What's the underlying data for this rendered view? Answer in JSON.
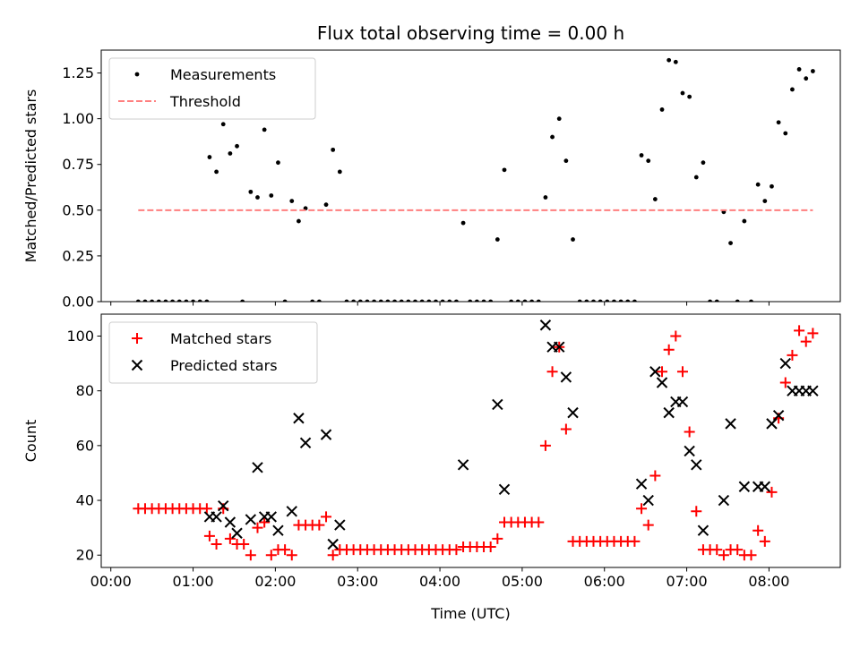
{
  "chart_data": [
    {
      "type": "scatter",
      "title": "Flux total observing time = 0.00 h",
      "xlabel": "",
      "ylabel": "Matched/Predicted stars",
      "xlim": [
        "23:53",
        "08:52"
      ],
      "ylim": [
        0,
        1.375
      ],
      "x_tick_labels_hidden": true,
      "y_ticks": [
        "0.00",
        "0.25",
        "0.50",
        "0.75",
        "1.00",
        "1.25"
      ],
      "legend_position": "upper left",
      "grid": false,
      "series": [
        {
          "name": "Measurements",
          "marker": "dot",
          "color": "#000000",
          "points": [
            [
              "00:20",
              0
            ],
            [
              "00:25",
              0
            ],
            [
              "00:30",
              0
            ],
            [
              "00:35",
              0
            ],
            [
              "00:40",
              0
            ],
            [
              "00:45",
              0
            ],
            [
              "00:50",
              0
            ],
            [
              "00:55",
              0
            ],
            [
              "01:00",
              0
            ],
            [
              "01:05",
              0
            ],
            [
              "01:10",
              0
            ],
            [
              "01:12",
              0.79
            ],
            [
              "01:17",
              0.71
            ],
            [
              "01:22",
              0.97
            ],
            [
              "01:27",
              0.81
            ],
            [
              "01:32",
              0.85
            ],
            [
              "01:36",
              0
            ],
            [
              "01:42",
              0.6
            ],
            [
              "01:47",
              0.57
            ],
            [
              "01:52",
              0.94
            ],
            [
              "01:57",
              0.58
            ],
            [
              "02:02",
              0.76
            ],
            [
              "02:07",
              0
            ],
            [
              "02:12",
              0.55
            ],
            [
              "02:17",
              0.44
            ],
            [
              "02:22",
              0.51
            ],
            [
              "02:27",
              0
            ],
            [
              "02:32",
              0
            ],
            [
              "02:37",
              0.53
            ],
            [
              "02:42",
              0.83
            ],
            [
              "02:47",
              0.71
            ],
            [
              "02:52",
              0
            ],
            [
              "02:57",
              0
            ],
            [
              "03:02",
              0
            ],
            [
              "03:07",
              0
            ],
            [
              "03:12",
              0
            ],
            [
              "03:17",
              0
            ],
            [
              "03:22",
              0
            ],
            [
              "03:27",
              0
            ],
            [
              "03:32",
              0
            ],
            [
              "03:37",
              0
            ],
            [
              "03:42",
              0
            ],
            [
              "03:47",
              0
            ],
            [
              "03:52",
              0
            ],
            [
              "03:57",
              0
            ],
            [
              "04:02",
              0
            ],
            [
              "04:07",
              0
            ],
            [
              "04:12",
              0
            ],
            [
              "04:17",
              0.43
            ],
            [
              "04:22",
              0
            ],
            [
              "04:27",
              0
            ],
            [
              "04:32",
              0
            ],
            [
              "04:37",
              0
            ],
            [
              "04:42",
              0.34
            ],
            [
              "04:47",
              0.72
            ],
            [
              "04:52",
              0
            ],
            [
              "04:57",
              0
            ],
            [
              "05:02",
              0
            ],
            [
              "05:07",
              0
            ],
            [
              "05:12",
              0
            ],
            [
              "05:17",
              0.57
            ],
            [
              "05:22",
              0.9
            ],
            [
              "05:27",
              1.0
            ],
            [
              "05:32",
              0.77
            ],
            [
              "05:37",
              0.34
            ],
            [
              "05:42",
              0
            ],
            [
              "05:47",
              0
            ],
            [
              "05:52",
              0
            ],
            [
              "05:57",
              0
            ],
            [
              "06:02",
              0
            ],
            [
              "06:07",
              0
            ],
            [
              "06:12",
              0
            ],
            [
              "06:17",
              0
            ],
            [
              "06:22",
              0
            ],
            [
              "06:27",
              0.8
            ],
            [
              "06:32",
              0.77
            ],
            [
              "06:37",
              0.56
            ],
            [
              "06:42",
              1.05
            ],
            [
              "06:47",
              1.32
            ],
            [
              "06:52",
              1.31
            ],
            [
              "06:57",
              1.14
            ],
            [
              "07:02",
              1.12
            ],
            [
              "07:07",
              0.68
            ],
            [
              "07:12",
              0.76
            ],
            [
              "07:17",
              0
            ],
            [
              "07:22",
              0
            ],
            [
              "07:27",
              0.49
            ],
            [
              "07:32",
              0.32
            ],
            [
              "07:37",
              0
            ],
            [
              "07:42",
              0.44
            ],
            [
              "07:47",
              0
            ],
            [
              "07:52",
              0.64
            ],
            [
              "07:57",
              0.55
            ],
            [
              "08:02",
              0.63
            ],
            [
              "08:07",
              0.98
            ],
            [
              "08:12",
              0.92
            ],
            [
              "08:17",
              1.16
            ],
            [
              "08:22",
              1.27
            ],
            [
              "08:27",
              1.22
            ],
            [
              "08:32",
              1.26
            ]
          ]
        },
        {
          "name": "Threshold",
          "style": "dashed-line",
          "color": "#ff7f7f",
          "points": [
            [
              "00:20",
              0.5
            ],
            [
              "08:32",
              0.5
            ]
          ]
        }
      ]
    },
    {
      "type": "scatter",
      "title": "",
      "xlabel": "Time (UTC)",
      "ylabel": "Count",
      "xlim": [
        "23:53",
        "08:52"
      ],
      "ylim": [
        15.5,
        108
      ],
      "x_ticks": [
        "00:00",
        "01:00",
        "02:00",
        "03:00",
        "04:00",
        "05:00",
        "06:00",
        "07:00",
        "08:00"
      ],
      "y_ticks": [
        "20",
        "40",
        "60",
        "80",
        "100"
      ],
      "legend_position": "upper left",
      "grid": false,
      "series": [
        {
          "name": "Matched stars",
          "marker": "plus",
          "color": "#ff0000",
          "points": [
            [
              "00:20",
              37
            ],
            [
              "00:25",
              37
            ],
            [
              "00:30",
              37
            ],
            [
              "00:35",
              37
            ],
            [
              "00:40",
              37
            ],
            [
              "00:45",
              37
            ],
            [
              "00:50",
              37
            ],
            [
              "00:55",
              37
            ],
            [
              "01:00",
              37
            ],
            [
              "01:05",
              37
            ],
            [
              "01:10",
              37
            ],
            [
              "01:12",
              27
            ],
            [
              "01:17",
              24
            ],
            [
              "01:22",
              37
            ],
            [
              "01:27",
              26
            ],
            [
              "01:32",
              24
            ],
            [
              "01:37",
              24
            ],
            [
              "01:42",
              20
            ],
            [
              "01:47",
              30
            ],
            [
              "01:52",
              32
            ],
            [
              "01:57",
              20
            ],
            [
              "02:02",
              22
            ],
            [
              "02:07",
              22
            ],
            [
              "02:12",
              20
            ],
            [
              "02:17",
              31
            ],
            [
              "02:22",
              31
            ],
            [
              "02:27",
              31
            ],
            [
              "02:32",
              31
            ],
            [
              "02:37",
              34
            ],
            [
              "02:42",
              20
            ],
            [
              "02:47",
              22
            ],
            [
              "02:52",
              22
            ],
            [
              "02:57",
              22
            ],
            [
              "03:02",
              22
            ],
            [
              "03:07",
              22
            ],
            [
              "03:12",
              22
            ],
            [
              "03:17",
              22
            ],
            [
              "03:22",
              22
            ],
            [
              "03:27",
              22
            ],
            [
              "03:32",
              22
            ],
            [
              "03:37",
              22
            ],
            [
              "03:42",
              22
            ],
            [
              "03:47",
              22
            ],
            [
              "03:52",
              22
            ],
            [
              "03:57",
              22
            ],
            [
              "04:02",
              22
            ],
            [
              "04:07",
              22
            ],
            [
              "04:12",
              22
            ],
            [
              "04:17",
              23
            ],
            [
              "04:22",
              23
            ],
            [
              "04:27",
              23
            ],
            [
              "04:32",
              23
            ],
            [
              "04:37",
              23
            ],
            [
              "04:42",
              26
            ],
            [
              "04:47",
              32
            ],
            [
              "04:52",
              32
            ],
            [
              "04:57",
              32
            ],
            [
              "05:02",
              32
            ],
            [
              "05:07",
              32
            ],
            [
              "05:12",
              32
            ],
            [
              "05:17",
              60
            ],
            [
              "05:22",
              87
            ],
            [
              "05:27",
              96
            ],
            [
              "05:32",
              66
            ],
            [
              "05:37",
              25
            ],
            [
              "05:42",
              25
            ],
            [
              "05:47",
              25
            ],
            [
              "05:52",
              25
            ],
            [
              "05:57",
              25
            ],
            [
              "06:02",
              25
            ],
            [
              "06:07",
              25
            ],
            [
              "06:12",
              25
            ],
            [
              "06:17",
              25
            ],
            [
              "06:22",
              25
            ],
            [
              "06:27",
              37
            ],
            [
              "06:32",
              31
            ],
            [
              "06:37",
              49
            ],
            [
              "06:42",
              87
            ],
            [
              "06:47",
              95
            ],
            [
              "06:52",
              100
            ],
            [
              "06:57",
              87
            ],
            [
              "07:02",
              65
            ],
            [
              "07:07",
              36
            ],
            [
              "07:12",
              22
            ],
            [
              "07:17",
              22
            ],
            [
              "07:22",
              22
            ],
            [
              "07:27",
              20
            ],
            [
              "07:32",
              22
            ],
            [
              "07:37",
              22
            ],
            [
              "07:42",
              20
            ],
            [
              "07:47",
              20
            ],
            [
              "07:52",
              29
            ],
            [
              "07:57",
              25
            ],
            [
              "08:02",
              43
            ],
            [
              "08:07",
              70
            ],
            [
              "08:12",
              83
            ],
            [
              "08:17",
              93
            ],
            [
              "08:22",
              102
            ],
            [
              "08:27",
              98
            ],
            [
              "08:32",
              101
            ]
          ]
        },
        {
          "name": "Predicted stars",
          "marker": "x",
          "color": "#000000",
          "points": [
            [
              "01:12",
              34
            ],
            [
              "01:17",
              34
            ],
            [
              "01:22",
              38
            ],
            [
              "01:27",
              32
            ],
            [
              "01:32",
              28
            ],
            [
              "01:42",
              33
            ],
            [
              "01:47",
              52
            ],
            [
              "01:52",
              34
            ],
            [
              "01:57",
              34
            ],
            [
              "02:02",
              29
            ],
            [
              "02:12",
              36
            ],
            [
              "02:17",
              70
            ],
            [
              "02:22",
              61
            ],
            [
              "02:37",
              64
            ],
            [
              "02:42",
              24
            ],
            [
              "02:47",
              31
            ],
            [
              "04:17",
              53
            ],
            [
              "04:42",
              75
            ],
            [
              "04:47",
              44
            ],
            [
              "05:17",
              104
            ],
            [
              "05:22",
              96
            ],
            [
              "05:27",
              96
            ],
            [
              "05:32",
              85
            ],
            [
              "05:37",
              72
            ],
            [
              "06:27",
              46
            ],
            [
              "06:32",
              40
            ],
            [
              "06:37",
              87
            ],
            [
              "06:42",
              83
            ],
            [
              "06:47",
              72
            ],
            [
              "06:52",
              76
            ],
            [
              "06:57",
              76
            ],
            [
              "07:02",
              58
            ],
            [
              "07:07",
              53
            ],
            [
              "07:12",
              29
            ],
            [
              "07:27",
              40
            ],
            [
              "07:32",
              68
            ],
            [
              "07:42",
              45
            ],
            [
              "07:52",
              45
            ],
            [
              "07:57",
              45
            ],
            [
              "08:02",
              68
            ],
            [
              "08:07",
              71
            ],
            [
              "08:12",
              90
            ],
            [
              "08:17",
              80
            ],
            [
              "08:22",
              80
            ],
            [
              "08:27",
              80
            ],
            [
              "08:32",
              80
            ]
          ]
        }
      ]
    }
  ]
}
